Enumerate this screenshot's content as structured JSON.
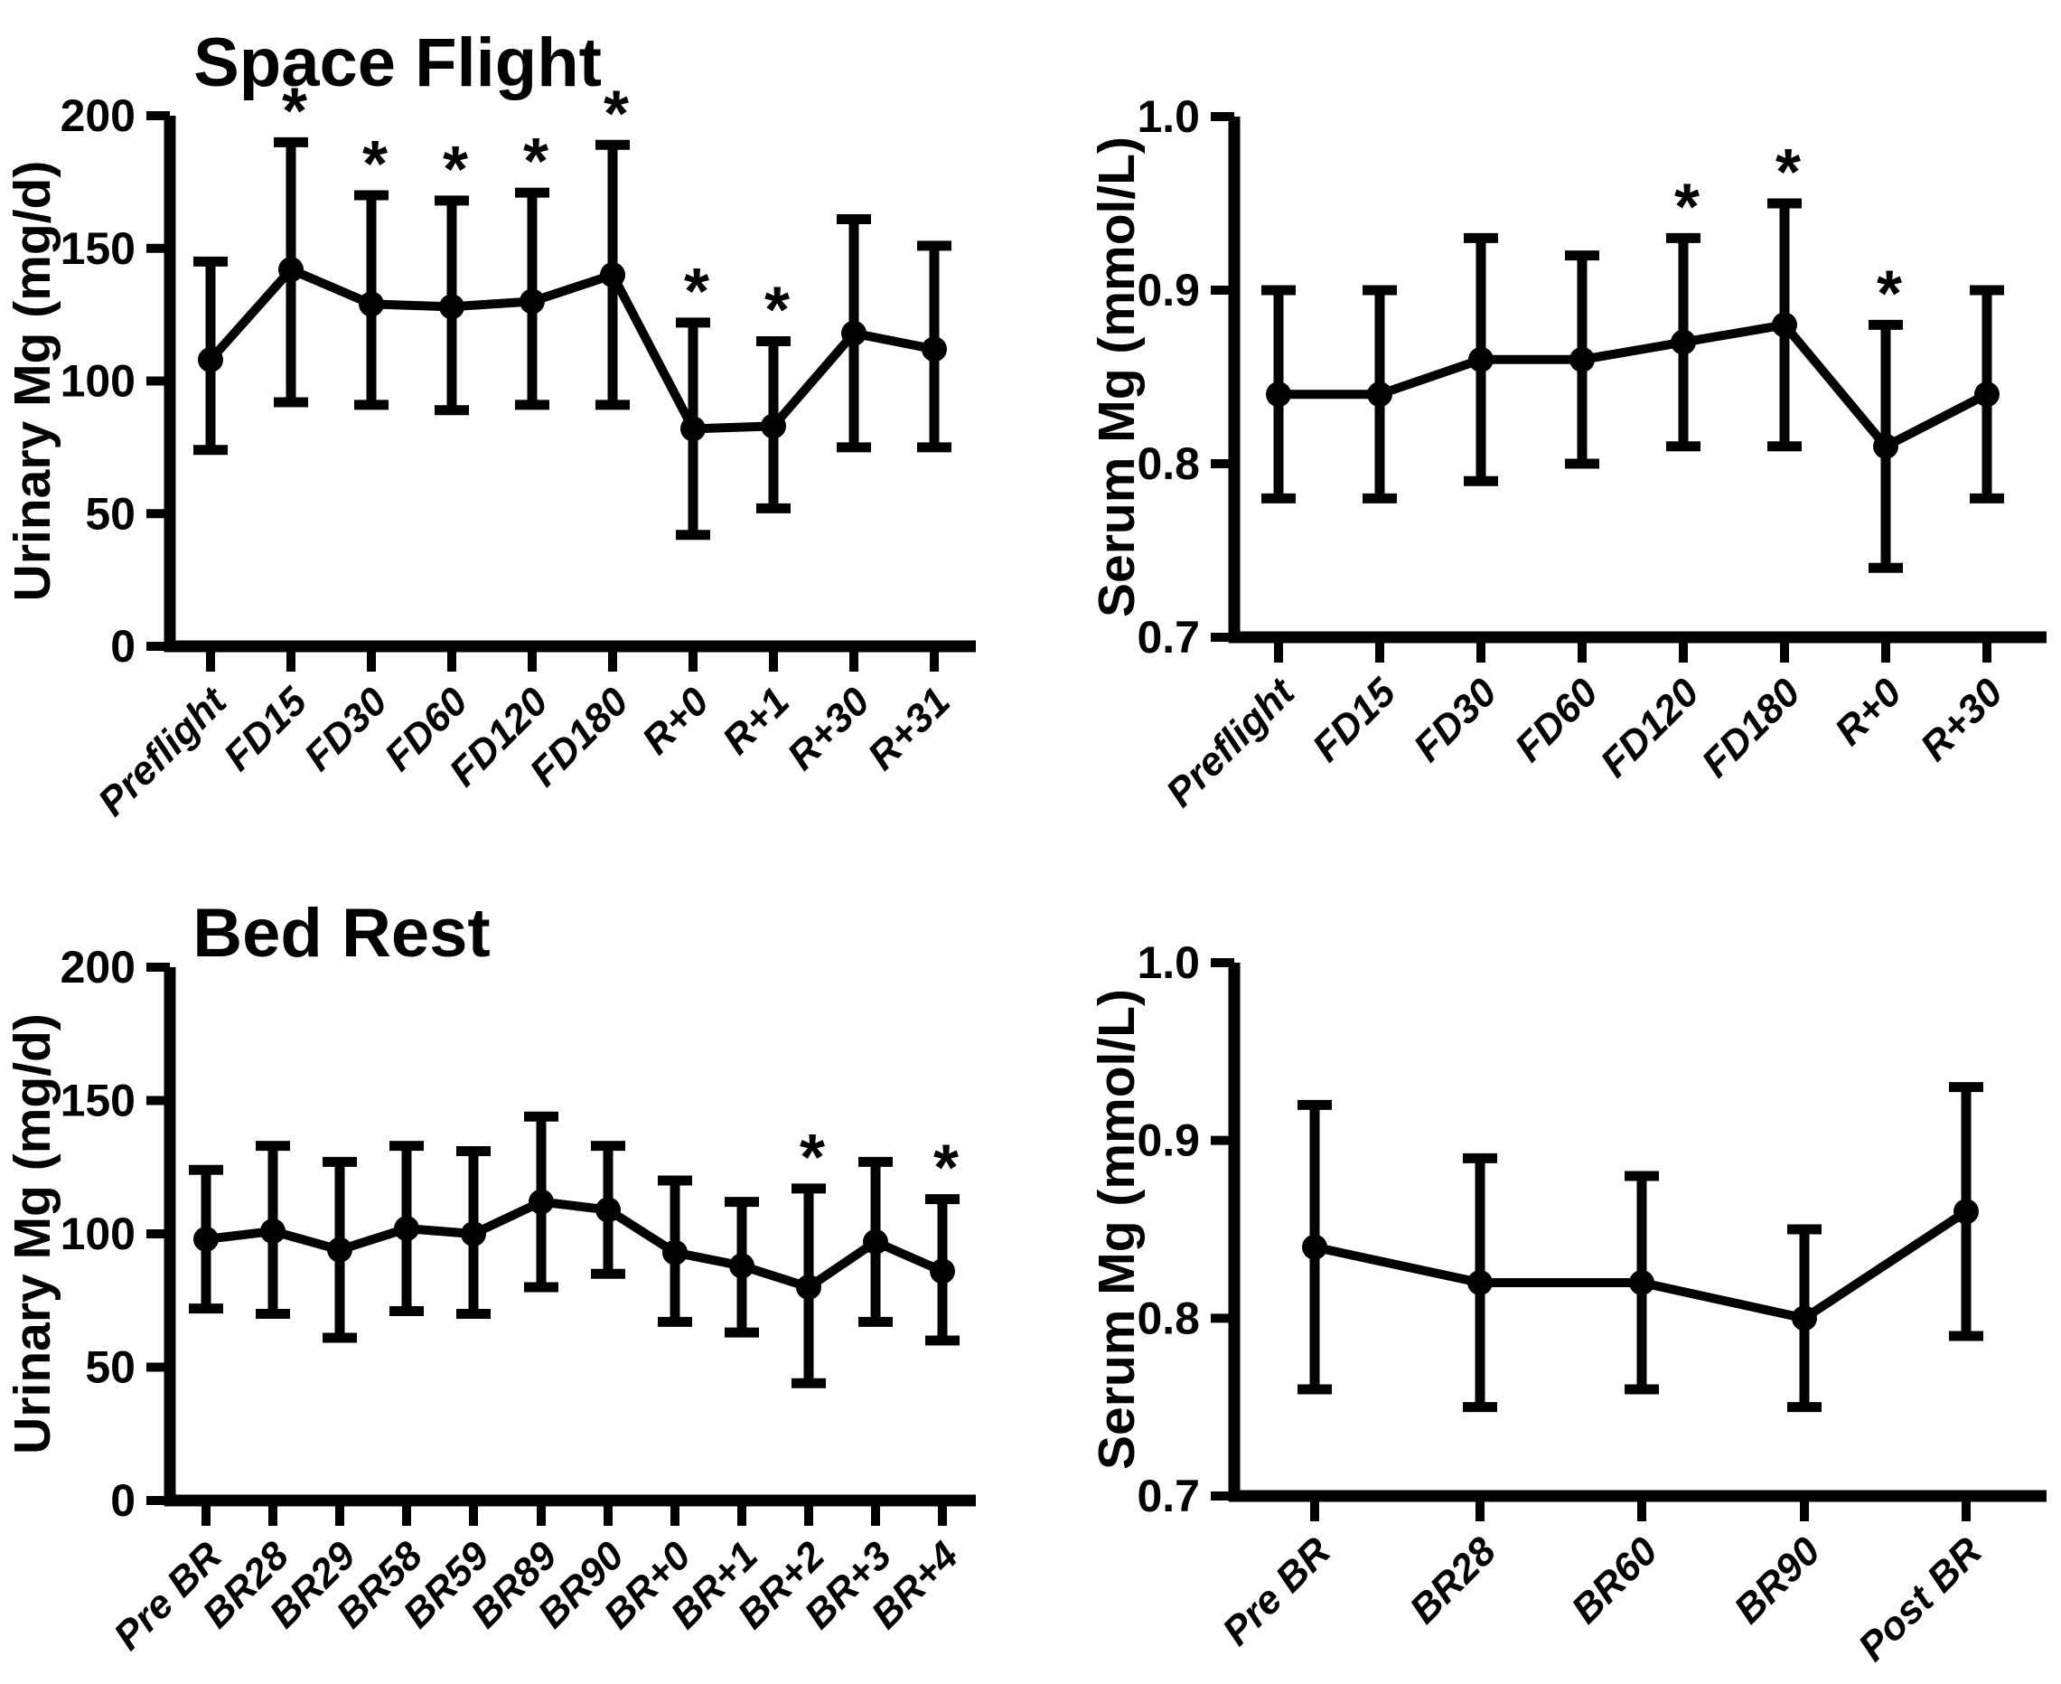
{
  "figure": {
    "background_color": "#ffffff",
    "ink_color": "#000000",
    "significance_marker": "*"
  },
  "chart_data": [
    {
      "id": "spaceflight-urinary",
      "type": "line",
      "title": "Space Flight",
      "ylabel": "Urinary Mg (mg/d)",
      "ylim": [
        0,
        200
      ],
      "yticks": [
        0,
        50,
        100,
        150,
        200
      ],
      "ytick_labels": [
        "0",
        "50",
        "100",
        "150",
        "200"
      ],
      "grid": false,
      "legend": "none",
      "categories": [
        "Preflight",
        "FD15",
        "FD30",
        "FD60",
        "FD120",
        "FD180",
        "R+0",
        "R+1",
        "R+30",
        "R+31"
      ],
      "series": [
        {
          "name": "Urinary Mg",
          "values": [
            108,
            142,
            129,
            128,
            130,
            140,
            82,
            83,
            118,
            112
          ],
          "err_lo": [
            74,
            92,
            91,
            89,
            91,
            91,
            42,
            52,
            75,
            75
          ],
          "err_hi": [
            145,
            190,
            170,
            168,
            171,
            189,
            122,
            115,
            161,
            151
          ],
          "starred": [
            false,
            true,
            true,
            true,
            true,
            true,
            true,
            true,
            false,
            false
          ]
        }
      ]
    },
    {
      "id": "spaceflight-serum",
      "type": "line",
      "title": "",
      "ylabel": "Serum Mg (mmol/L)",
      "ylim": [
        0.7,
        1.0
      ],
      "yticks": [
        0.7,
        0.8,
        0.9,
        1.0
      ],
      "ytick_labels": [
        "0.7",
        "0.8",
        "0.9",
        "1.0"
      ],
      "grid": false,
      "legend": "none",
      "categories": [
        "Preflight",
        "FD15",
        "FD30",
        "FD60",
        "FD120",
        "FD180",
        "R+0",
        "R+30"
      ],
      "series": [
        {
          "name": "Serum Mg",
          "values": [
            0.84,
            0.84,
            0.86,
            0.86,
            0.87,
            0.88,
            0.81,
            0.84
          ],
          "err_lo": [
            0.78,
            0.78,
            0.79,
            0.8,
            0.81,
            0.81,
            0.74,
            0.78
          ],
          "err_hi": [
            0.9,
            0.9,
            0.93,
            0.92,
            0.93,
            0.95,
            0.88,
            0.9
          ],
          "starred": [
            false,
            false,
            false,
            false,
            true,
            true,
            true,
            false
          ]
        }
      ]
    },
    {
      "id": "bedrest-urinary",
      "type": "line",
      "title": "Bed Rest",
      "ylabel": "Urinary Mg (mg/d)",
      "ylim": [
        0,
        200
      ],
      "yticks": [
        0,
        50,
        100,
        150,
        200
      ],
      "ytick_labels": [
        "0",
        "50",
        "100",
        "150",
        "200"
      ],
      "grid": false,
      "legend": "none",
      "categories": [
        "Pre BR",
        "BR28",
        "BR29",
        "BR58",
        "BR59",
        "BR89",
        "BR90",
        "BR+0",
        "BR+1",
        "BR+2",
        "BR+3",
        "BR+4"
      ],
      "series": [
        {
          "name": "Urinary Mg",
          "values": [
            98,
            101,
            94,
            102,
            100,
            112,
            109,
            93,
            88,
            80,
            97,
            86
          ],
          "err_lo": [
            72,
            70,
            61,
            71,
            70,
            80,
            85,
            67,
            63,
            44,
            67,
            60
          ],
          "err_hi": [
            124,
            133,
            127,
            133,
            131,
            144,
            133,
            120,
            112,
            117,
            127,
            113
          ],
          "starred": [
            false,
            false,
            false,
            false,
            false,
            false,
            false,
            false,
            false,
            true,
            false,
            true
          ]
        }
      ]
    },
    {
      "id": "bedrest-serum",
      "type": "line",
      "title": "",
      "ylabel": "Serum Mg (mmol/L)",
      "ylim": [
        0.7,
        1.0
      ],
      "yticks": [
        0.7,
        0.8,
        0.9,
        1.0
      ],
      "ytick_labels": [
        "0.7",
        "0.8",
        "0.9",
        "1.0"
      ],
      "grid": false,
      "legend": "none",
      "categories": [
        "Pre BR",
        "BR28",
        "BR60",
        "BR90",
        "Post BR"
      ],
      "series": [
        {
          "name": "Serum Mg",
          "values": [
            0.84,
            0.82,
            0.82,
            0.8,
            0.86
          ],
          "err_lo": [
            0.76,
            0.75,
            0.76,
            0.75,
            0.79
          ],
          "err_hi": [
            0.92,
            0.89,
            0.88,
            0.85,
            0.93
          ],
          "starred": [
            false,
            false,
            false,
            false,
            false
          ]
        }
      ]
    }
  ]
}
